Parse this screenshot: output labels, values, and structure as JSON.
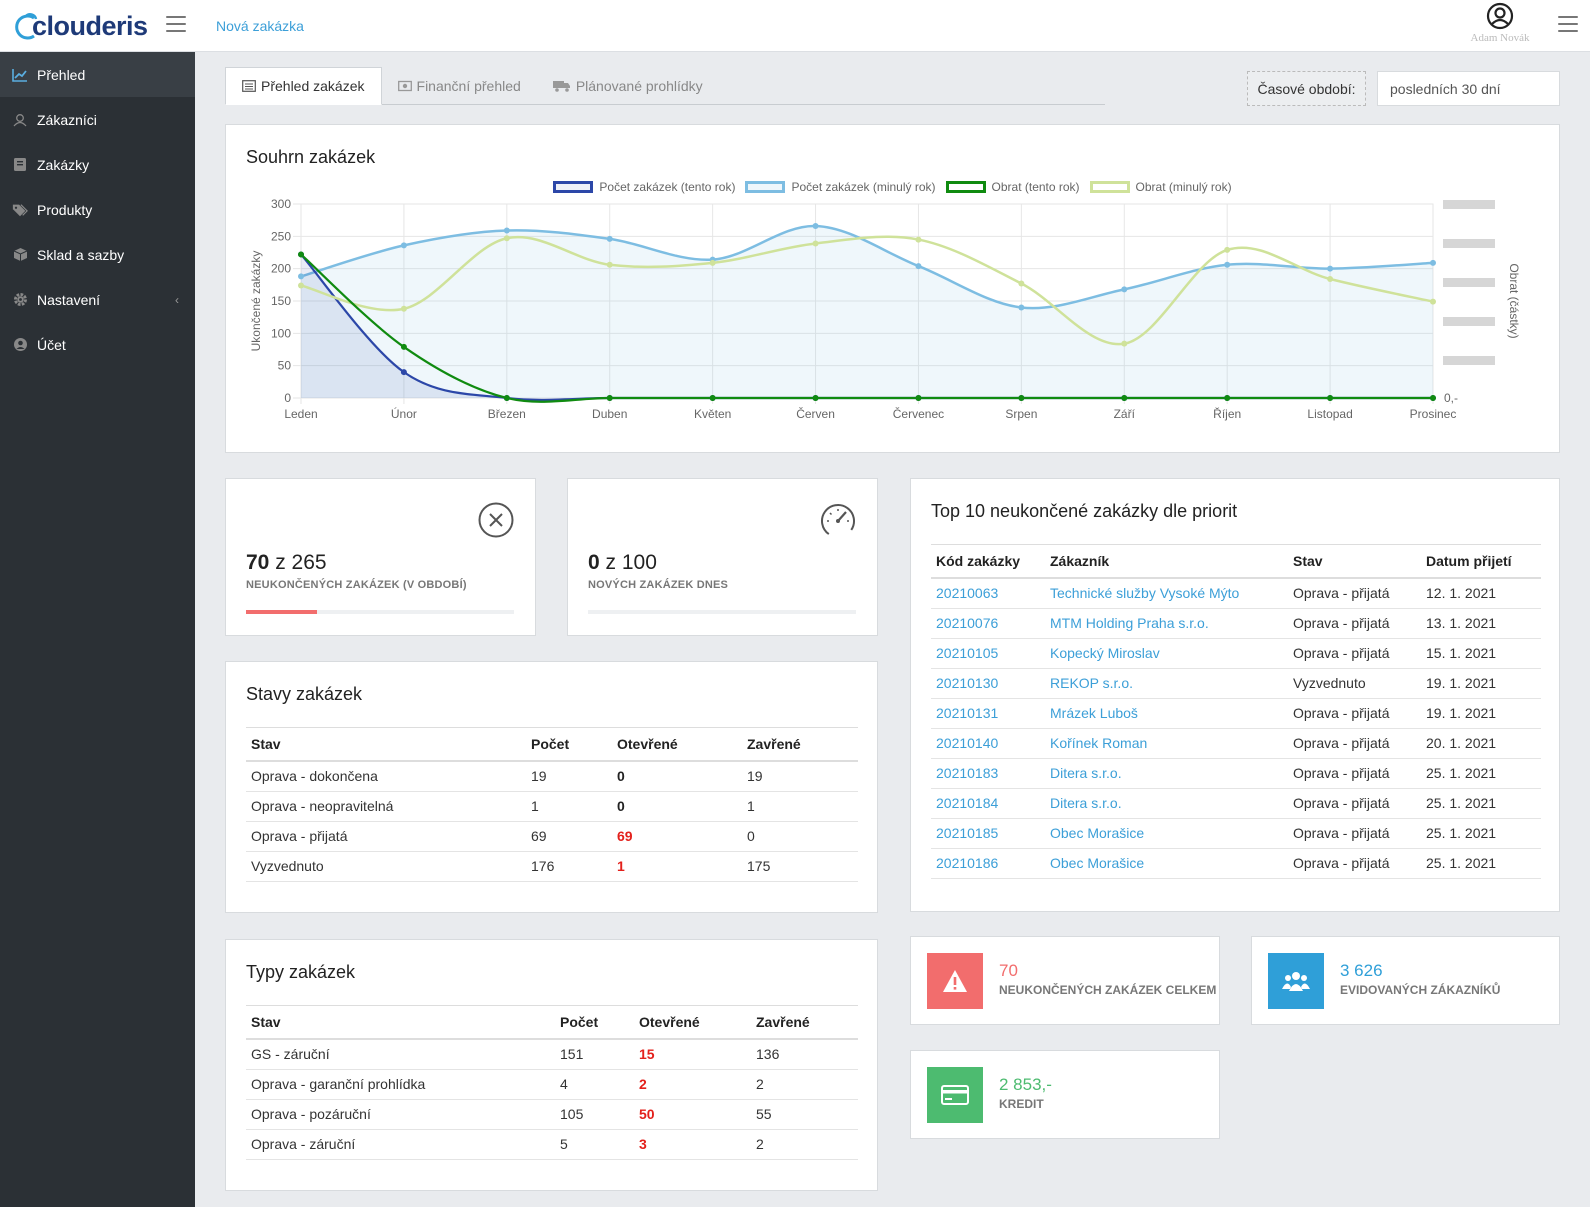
{
  "app": {
    "brand": "clouderis",
    "new_order": "Nová zakázka",
    "user_name": "Adam Novák"
  },
  "sidebar": {
    "items": [
      {
        "label": "Přehled",
        "icon": "chart-line-icon",
        "active": true
      },
      {
        "label": "Zákazníci",
        "icon": "users-icon"
      },
      {
        "label": "Zakázky",
        "icon": "book-icon"
      },
      {
        "label": "Produkty",
        "icon": "tags-icon"
      },
      {
        "label": "Sklad a sazby",
        "icon": "cube-icon"
      },
      {
        "label": "Nastavení",
        "icon": "gear-icon",
        "has_submenu": true
      },
      {
        "label": "Účet",
        "icon": "user-circle-icon"
      }
    ]
  },
  "tabs": [
    {
      "label": "Přehled zakázek",
      "icon": "list-icon",
      "active": true
    },
    {
      "label": "Finanční přehled",
      "icon": "money-icon"
    },
    {
      "label": "Plánované prohlídky",
      "icon": "truck-icon"
    }
  ],
  "period": {
    "label": "Časové období:",
    "value": "posledních 30 dní"
  },
  "summary": {
    "title": "Souhrn zakázek",
    "chart_data": {
      "type": "line",
      "categories": [
        "Leden",
        "Únor",
        "Březen",
        "Duben",
        "Květen",
        "Červen",
        "Červenec",
        "Srpen",
        "Září",
        "Říjen",
        "Listopad",
        "Prosinec"
      ],
      "series": [
        {
          "name": "Počet zakázek (tento rok)",
          "values": [
            222,
            40,
            0,
            0,
            0,
            0,
            0,
            0,
            0,
            0,
            0,
            0
          ],
          "color": "#2c47a8"
        },
        {
          "name": "Počet zakázek (minulý rok)",
          "values": [
            188,
            236,
            259,
            246,
            214,
            266,
            204,
            140,
            168,
            206,
            200,
            209
          ],
          "color": "#7dbde2"
        },
        {
          "name": "Obrat (tento rok)",
          "values": [
            222,
            79,
            0,
            0,
            0,
            0,
            0,
            0,
            0,
            0,
            0,
            0
          ],
          "color": "#108b10"
        },
        {
          "name": "Obrat (minulý rok)",
          "values": [
            174,
            138,
            247,
            206,
            209,
            239,
            245,
            177,
            84,
            229,
            184,
            149
          ],
          "color": "#cfe29a"
        }
      ],
      "ylabel": "Ukončené zakázky",
      "y2label": "Obrat (částky)",
      "yticks": [
        300,
        250,
        200,
        150,
        100,
        50,
        0
      ],
      "ylim": [
        0,
        300
      ],
      "y2_zero_label": "0,-",
      "grid": true,
      "legend": "top"
    }
  },
  "stats": [
    {
      "value": "70",
      "of": "z 265",
      "label": "NEUKONČENÝCH ZAKÁZEK (V OBDOBÍ)",
      "progress": 0.264,
      "icon": "close-circle-icon"
    },
    {
      "value": "0",
      "of": "z 100",
      "label": "NOVÝCH ZAKÁZEK DNES",
      "progress": 0,
      "icon": "speedometer-icon"
    }
  ],
  "states": {
    "title": "Stavy zakázek",
    "headers": [
      "Stav",
      "Počet",
      "Otevřené",
      "Zavřené"
    ],
    "rows": [
      [
        "Oprava - dokončena",
        "19",
        "0",
        "19"
      ],
      [
        "Oprava - neopravitelná",
        "1",
        "0",
        "1"
      ],
      [
        "Oprava - přijatá",
        "69",
        "69",
        "0"
      ],
      [
        "Vyzvednuto",
        "176",
        "1",
        "175"
      ]
    ]
  },
  "types": {
    "title": "Typy zakázek",
    "headers": [
      "Stav",
      "Počet",
      "Otevřené",
      "Zavřené"
    ],
    "rows": [
      [
        "GS - záruční",
        "151",
        "15",
        "136"
      ],
      [
        "Oprava - garanční prohlídka",
        "4",
        "2",
        "2"
      ],
      [
        "Oprava - pozáruční",
        "105",
        "50",
        "55"
      ],
      [
        "Oprava - záruční",
        "5",
        "3",
        "2"
      ]
    ]
  },
  "top10": {
    "title": "Top 10 neukončené zakázky dle priorit",
    "headers": [
      "Kód zakázky",
      "Zákazník",
      "Stav",
      "Datum přijetí"
    ],
    "rows": [
      [
        "20210063",
        "Technické služby Vysoké Mýto",
        "Oprava - přijatá",
        "12. 1. 2021"
      ],
      [
        "20210076",
        "MTM Holding Praha s.r.o.",
        "Oprava - přijatá",
        "13. 1. 2021"
      ],
      [
        "20210105",
        "Kopecký Miroslav",
        "Oprava - přijatá",
        "15. 1. 2021"
      ],
      [
        "20210130",
        "REKOP s.r.o.",
        "Vyzvednuto",
        "19. 1. 2021"
      ],
      [
        "20210131",
        "Mrázek Luboš",
        "Oprava - přijatá",
        "19. 1. 2021"
      ],
      [
        "20210140",
        "Kořínek Roman",
        "Oprava - přijatá",
        "20. 1. 2021"
      ],
      [
        "20210183",
        "Ditera s.r.o.",
        "Oprava - přijatá",
        "25. 1. 2021"
      ],
      [
        "20210184",
        "Ditera s.r.o.",
        "Oprava - přijatá",
        "25. 1. 2021"
      ],
      [
        "20210185",
        "Obec Morašice",
        "Oprava - přijatá",
        "25. 1. 2021"
      ],
      [
        "20210186",
        "Obec Morašice",
        "Oprava - přijatá",
        "25. 1. 2021"
      ]
    ]
  },
  "info_boxes": [
    {
      "value": "70",
      "label": "NEUKONČENÝCH ZAKÁZEK CELKEM",
      "color": "#f26d6d",
      "icon": "warning-icon"
    },
    {
      "value": "3 626",
      "label": "EVIDOVANÝCH ZÁKAZNÍKŮ",
      "color": "#2f9fd8",
      "icon": "users-group-icon"
    },
    {
      "value": "2 853,-",
      "label": "KREDIT",
      "color": "#4dbb70",
      "icon": "credit-card-icon"
    }
  ]
}
